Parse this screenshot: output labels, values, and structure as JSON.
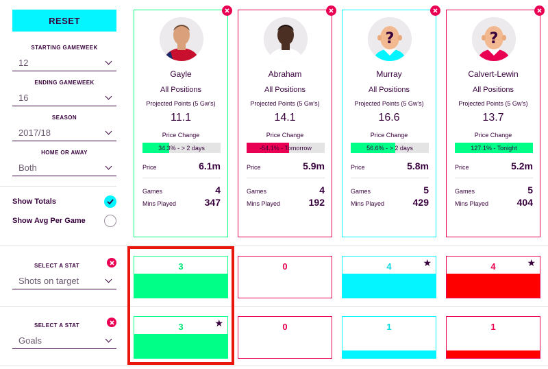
{
  "sidebar": {
    "reset_label": "RESET",
    "filters": [
      {
        "label": "STARTING GAMEWEEK",
        "value": "12"
      },
      {
        "label": "ENDING GAMEWEEK",
        "value": "16"
      },
      {
        "label": "SEASON",
        "value": "2017/18"
      },
      {
        "label": "HOME OR AWAY",
        "value": "Both"
      }
    ],
    "show_totals": {
      "label": "Show Totals",
      "checked": true
    },
    "show_avg": {
      "label": "Show Avg Per Game",
      "checked": false
    }
  },
  "stat_rows": [
    {
      "label": "SELECT A STAT",
      "value": "Shots on target"
    },
    {
      "label": "SELECT A STAT",
      "value": "Goals"
    }
  ],
  "labels": {
    "projected": "Projected Points (5 Gw's)",
    "price_change": "Price Change",
    "price": "Price",
    "games": "Games",
    "mins": "Mins Played"
  },
  "players": [
    {
      "name": "Gayle",
      "position": "All Positions",
      "projected": "11.1",
      "price_change_text": "34.3% - > 2 days",
      "price_change_pct": 34.3,
      "price": "6.1m",
      "games": "4",
      "mins": "347",
      "color": "#00ff87",
      "fill": "#00ff87",
      "avatar": "photo-light",
      "shirt": "#c8102e",
      "stats": [
        {
          "value": "3",
          "fill_ratio": 0.58,
          "star": false
        },
        {
          "value": "3",
          "fill_ratio": 0.58,
          "star": true
        }
      ]
    },
    {
      "name": "Abraham",
      "position": "All Positions",
      "projected": "14.1",
      "price_change_text": "-54.1% - Tomorrow",
      "price_change_pct": 54.1,
      "price": "5.9m",
      "games": "4",
      "mins": "192",
      "color": "#e90052",
      "fill": "#e90052",
      "avatar": "photo-dark",
      "shirt": "#ffffff",
      "stats": [
        {
          "value": "0",
          "fill_ratio": 0,
          "star": false
        },
        {
          "value": "0",
          "fill_ratio": 0,
          "star": false
        }
      ]
    },
    {
      "name": "Murray",
      "position": "All Positions",
      "projected": "16.6",
      "price_change_text": "56.6% - > 2 days",
      "price_change_pct": 56.6,
      "price": "5.8m",
      "games": "5",
      "mins": "429",
      "color": "#04f5ff",
      "fill": "#00ff87",
      "avatar": "placeholder",
      "shirt": "#04f5ff",
      "stats": [
        {
          "value": "4",
          "fill_ratio": 0.58,
          "star": true
        },
        {
          "value": "1",
          "fill_ratio": 0.19,
          "star": false
        }
      ]
    },
    {
      "name": "Calvert-Lewin",
      "position": "All Positions",
      "projected": "13.7",
      "price_change_text": "127.1% - Tonight",
      "price_change_pct": 100,
      "price": "5.2m",
      "games": "5",
      "mins": "404",
      "color": "#e90052",
      "fill": "#00ff87",
      "avatar": "placeholder",
      "shirt": "#e90052",
      "stats": [
        {
          "value": "4",
          "fill_ratio": 0.58,
          "star": true,
          "fill_color": "#ff0000"
        },
        {
          "value": "1",
          "fill_ratio": 0.19,
          "star": false,
          "fill_color": "#ff0000"
        }
      ]
    }
  ],
  "colors": {
    "accent": "#04f5ff",
    "brand": "#37003c",
    "remove": "#e90052",
    "highlight": "#e8160c",
    "star": "#37003c"
  },
  "icons": {
    "close": "close-icon",
    "chevron": "chevron-down-icon",
    "check": "check-icon",
    "star": "star-icon"
  }
}
